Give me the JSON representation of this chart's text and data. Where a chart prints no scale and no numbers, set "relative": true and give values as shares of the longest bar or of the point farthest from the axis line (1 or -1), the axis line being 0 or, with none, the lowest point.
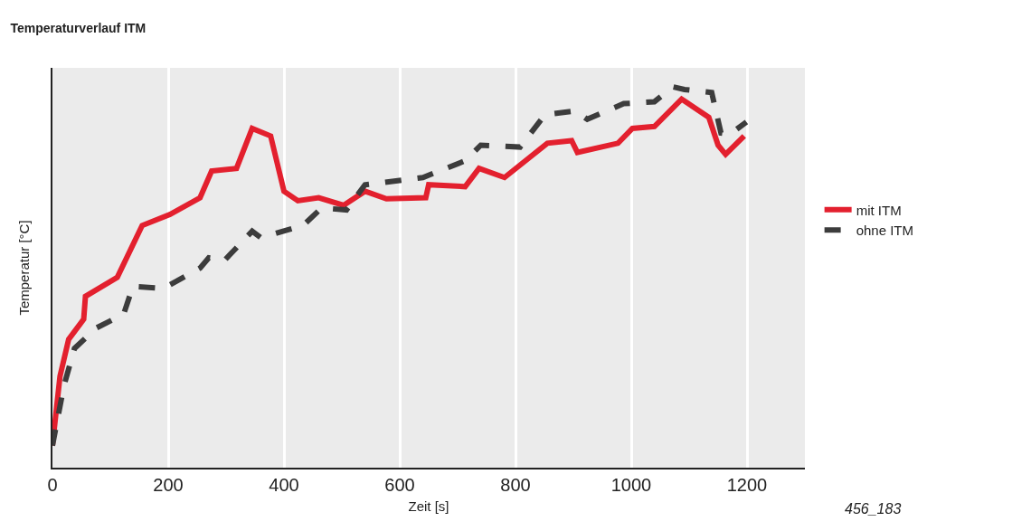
{
  "chart_data": {
    "type": "line",
    "title": "Temperaturverlauf ITM",
    "xlabel": "Zeit [s]",
    "ylabel": "Temperatur [°C]",
    "relative": true,
    "xlim": [
      0,
      1300
    ],
    "xticks": [
      0,
      200,
      400,
      600,
      800,
      1000,
      1200
    ],
    "grid": "x",
    "legend": "right",
    "annotations": [
      "456_183"
    ],
    "series": [
      {
        "name": "mit ITM",
        "color": "#e3202e",
        "line_style": "solid",
        "x": [
          0,
          13,
          28,
          54,
          57,
          112,
          155,
          203,
          255,
          275,
          318,
          345,
          377,
          400,
          424,
          460,
          503,
          540,
          577,
          645,
          650,
          713,
          737,
          781,
          855,
          897,
          907,
          977,
          1002,
          1040,
          1087,
          1134,
          1150,
          1163,
          1195
        ],
        "values": [
          0.058,
          0.24,
          0.337,
          0.39,
          0.45,
          0.5,
          0.636,
          0.665,
          0.709,
          0.779,
          0.786,
          0.891,
          0.871,
          0.726,
          0.701,
          0.709,
          0.689,
          0.726,
          0.706,
          0.709,
          0.743,
          0.738,
          0.786,
          0.762,
          0.852,
          0.859,
          0.828,
          0.852,
          0.891,
          0.896,
          0.968,
          0.92,
          0.847,
          0.823,
          0.871
        ]
      },
      {
        "name": "ohne ITM",
        "color": "#3c3c3c",
        "line_style": "dashed",
        "x": [
          0,
          20,
          38,
          76,
          123,
          139,
          192,
          255,
          270,
          297,
          345,
          360,
          433,
          465,
          508,
          540,
          603,
          640,
          713,
          740,
          808,
          851,
          903,
          924,
          987,
          1040,
          1072,
          1092,
          1139,
          1155,
          1171,
          1199
        ],
        "values": [
          0.058,
          0.216,
          0.313,
          0.367,
          0.403,
          0.476,
          0.471,
          0.524,
          0.551,
          0.544,
          0.621,
          0.604,
          0.636,
          0.682,
          0.677,
          0.743,
          0.755,
          0.762,
          0.806,
          0.847,
          0.842,
          0.927,
          0.937,
          0.915,
          0.956,
          0.961,
          1,
          0.993,
          0.985,
          0.879,
          0.876,
          0.908
        ]
      }
    ]
  }
}
